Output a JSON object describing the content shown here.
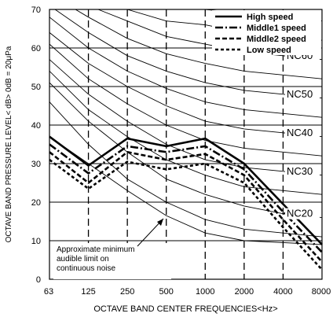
{
  "chart_data": {
    "type": "line",
    "xlabel": "OCTAVE BAND  CENTER  FREQUENCIES<Hz>",
    "ylabel": "OCTAVE BAND PRESSURE LEVEL< dB> 0dB = 20μPa",
    "x_categories": [
      "63",
      "125",
      "250",
      "500",
      "1000",
      "2000",
      "4000",
      "8000"
    ],
    "ylim": [
      0,
      70
    ],
    "yticks": [
      0,
      10,
      20,
      30,
      40,
      50,
      60,
      70
    ],
    "grid": true,
    "legend_position": "top-right",
    "series": [
      {
        "name": "High speed",
        "style": "solid",
        "values": [
          37,
          29.5,
          36.5,
          34.5,
          36.5,
          30,
          19.5,
          9
        ]
      },
      {
        "name": "Middle1 speed",
        "style": "dash-dot",
        "values": [
          35,
          27.5,
          34.5,
          33,
          34.5,
          28.5,
          17.5,
          7
        ]
      },
      {
        "name": "Middle2 speed",
        "style": "dashed",
        "values": [
          33,
          25,
          33,
          31,
          32.5,
          27,
          15.5,
          4.5
        ]
      },
      {
        "name": "Low speed",
        "style": "short-dashed",
        "values": [
          31,
          23.5,
          30.5,
          28.5,
          30,
          25,
          13.5,
          2.5
        ]
      }
    ],
    "nc_curves": [
      {
        "label": "NC20",
        "values": [
          51,
          41,
          33,
          26,
          22,
          19,
          17,
          16
        ]
      },
      {
        "label": "NC30",
        "values": [
          57,
          48,
          41,
          35,
          31,
          29,
          28,
          27
        ]
      },
      {
        "label": "NC40",
        "values": [
          64,
          56,
          50,
          45,
          41,
          39,
          38,
          37
        ]
      },
      {
        "label": "NC50",
        "values": [
          71,
          64,
          58,
          54,
          51,
          49,
          48,
          47
        ]
      },
      {
        "label": "NC60",
        "values": [
          77,
          71,
          67,
          63,
          61,
          59,
          58,
          57
        ]
      }
    ],
    "extra_curves": [
      [
        46,
        35,
        26,
        20,
        15.5,
        13,
        12,
        11
      ],
      [
        54,
        44,
        37,
        31,
        27,
        24,
        23,
        22
      ],
      [
        61,
        52,
        45.5,
        40,
        36,
        34,
        33,
        32
      ],
      [
        68,
        60,
        54,
        49.5,
        46,
        44,
        43,
        42
      ],
      [
        74,
        68,
        62.5,
        58.5,
        56,
        54,
        53,
        52
      ],
      [
        80,
        74,
        70,
        67,
        66,
        64,
        63,
        62
      ],
      [
        84,
        78,
        74,
        71,
        70,
        69,
        68,
        67
      ]
    ],
    "audible_limit_curve": [
      37,
      30,
      23,
      16.5,
      12,
      10,
      9.5,
      9
    ],
    "annotation": "Approximate minimum\naudible limit on\ncontinuous noise"
  }
}
